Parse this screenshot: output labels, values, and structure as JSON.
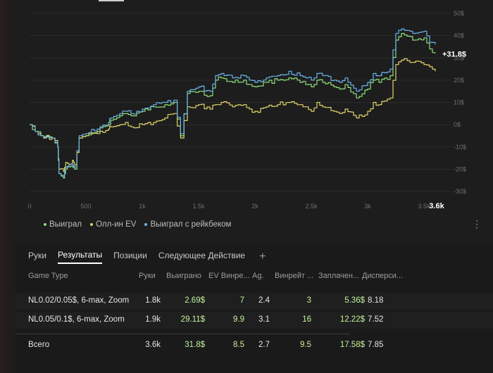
{
  "chart_data": {
    "type": "line",
    "x_ticks": [
      "0",
      "500",
      "1k",
      "1.5k",
      "2k",
      "2.5k",
      "3k",
      "3.5k"
    ],
    "x_end_label": "3.6k",
    "xlim": [
      0,
      3600
    ],
    "y_ticks": [
      "50$",
      "40$",
      "30$",
      "20$",
      "10$",
      "0$",
      "-10$",
      "-20$",
      "-30$"
    ],
    "y_tick_values": [
      50,
      40,
      30,
      20,
      10,
      0,
      -10,
      -20,
      -30
    ],
    "ylim": [
      -30,
      50
    ],
    "end_value_label": "+31.8$",
    "grid": "horizontal",
    "series": [
      {
        "name": "Выиграл",
        "color": "#8ee07a",
        "x": [
          0,
          50,
          100,
          200,
          250,
          260,
          300,
          320,
          350,
          380,
          400,
          440,
          500,
          600,
          700,
          720,
          800,
          850,
          900,
          1000,
          1100,
          1200,
          1280,
          1340,
          1400,
          1500,
          1600,
          1650,
          1700,
          1800,
          1900,
          1950,
          2000,
          2100,
          2200,
          2300,
          2400,
          2450,
          2500,
          2550,
          2600,
          2700,
          2750,
          2800,
          2900,
          3000,
          3050,
          3100,
          3200,
          3250,
          3300,
          3400,
          3500,
          3550,
          3600
        ],
        "y": [
          0,
          -3,
          -5,
          -6,
          -10,
          -22,
          -24,
          -20,
          -19,
          -19,
          -20,
          -6,
          -5,
          -3,
          0,
          2,
          4,
          5,
          4,
          6,
          8,
          9,
          10,
          -5,
          14,
          15,
          13,
          20,
          21,
          19,
          20,
          18,
          17,
          19,
          20,
          21,
          19,
          18,
          17,
          20,
          19,
          17,
          16,
          18,
          12,
          16,
          20,
          19,
          22,
          38,
          41,
          38,
          39,
          34,
          32
        ]
      },
      {
        "name": "Олл-ин EV",
        "color": "#e0d46a",
        "x": [
          0,
          50,
          100,
          200,
          250,
          260,
          300,
          320,
          350,
          380,
          400,
          440,
          500,
          600,
          700,
          720,
          800,
          850,
          900,
          1000,
          1100,
          1200,
          1280,
          1340,
          1400,
          1500,
          1600,
          1650,
          1700,
          1800,
          1900,
          1950,
          2000,
          2100,
          2200,
          2300,
          2400,
          2450,
          2500,
          2550,
          2600,
          2700,
          2750,
          2800,
          2900,
          3000,
          3050,
          3100,
          3200,
          3250,
          3300,
          3400,
          3500,
          3550,
          3600
        ],
        "y": [
          0,
          -3,
          -5,
          -6,
          -10,
          -20,
          -21,
          -17,
          -18,
          -16,
          -18,
          -6,
          -5,
          -4,
          -2,
          -1,
          0,
          1,
          -1,
          0,
          1,
          3,
          5,
          -6,
          8,
          9,
          7,
          9,
          10,
          8,
          9,
          7,
          6,
          8,
          9,
          10,
          9,
          8,
          6,
          10,
          8,
          6,
          5,
          7,
          3,
          6,
          10,
          9,
          12,
          27,
          29,
          28,
          27,
          26,
          24
        ]
      },
      {
        "name": "Выиграл с рейкбеком",
        "color": "#6ab4e8",
        "x": [
          0,
          50,
          100,
          200,
          250,
          260,
          300,
          320,
          350,
          380,
          400,
          440,
          500,
          600,
          700,
          720,
          800,
          850,
          900,
          1000,
          1100,
          1200,
          1280,
          1340,
          1400,
          1500,
          1600,
          1650,
          1700,
          1800,
          1900,
          1950,
          2000,
          2100,
          2200,
          2300,
          2400,
          2450,
          2500,
          2550,
          2600,
          2700,
          2750,
          2800,
          2900,
          3000,
          3050,
          3100,
          3200,
          3250,
          3300,
          3400,
          3500,
          3550,
          3600
        ],
        "y": [
          0,
          -3,
          -5,
          -6,
          -10,
          -22,
          -23,
          -19,
          -18,
          -18,
          -19,
          -5,
          -4,
          -2,
          1,
          3,
          5,
          6,
          5,
          7,
          9,
          10,
          11,
          -4,
          15,
          17,
          15,
          22,
          23,
          21,
          22,
          20,
          19,
          21,
          22,
          24,
          22,
          21,
          20,
          23,
          22,
          20,
          19,
          21,
          15,
          19,
          23,
          22,
          25,
          41,
          43,
          41,
          42,
          37,
          36
        ]
      }
    ]
  },
  "legend": [
    {
      "label": "Выиграл",
      "color": "#8ee07a"
    },
    {
      "label": "Олл-ин EV",
      "color": "#e0d46a"
    },
    {
      "label": "Выиграл с рейкбеком",
      "color": "#6ab4e8"
    }
  ],
  "more_icon": "⋮",
  "tabs": [
    {
      "label": "Руки",
      "active": false
    },
    {
      "label": "Результаты",
      "active": true
    },
    {
      "label": "Позиции",
      "active": false
    },
    {
      "label": "Следующее Действие",
      "active": false
    }
  ],
  "tab_add": "+",
  "table": {
    "headers": [
      "Game Type",
      "Руки",
      "Выиграно",
      "EV Винре...",
      "Ag.",
      "Винрейт ...",
      "Заплачен...",
      "Дисперси..."
    ],
    "rows": [
      [
        "NL0.02/0.05$, 6-max, Zoom",
        "1.8k",
        "2.69$",
        "7",
        "2.4",
        "3",
        "5.36$",
        "8.18"
      ],
      [
        "NL0.05/0.1$, 6-max, Zoom",
        "1.9k",
        "29.11$",
        "9.9",
        "3.1",
        "16",
        "12.22$",
        "7.52"
      ]
    ],
    "total": [
      "Всего",
      "3.6k",
      "31.8$",
      "8.5",
      "2.7",
      "9.5",
      "17.58$",
      "7.85"
    ]
  }
}
